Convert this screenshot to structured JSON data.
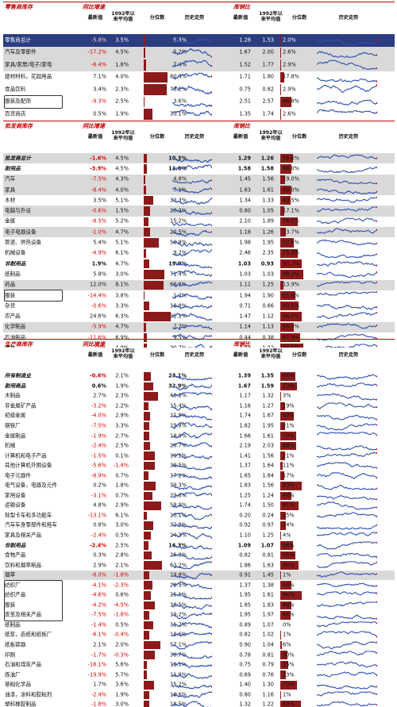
{
  "sections": [
    {
      "title_left": "零售商库存",
      "title_mid": "同比增速",
      "title_right": "库销比",
      "headers": {
        "latest": "最新值",
        "avg": "1992年以来平均值",
        "pct": "分位数",
        "trend": "历史走势",
        "latest2": "最新值",
        "avg2": "1992年以来平均值",
        "pct2": "分位数",
        "trend2": "历史走势"
      },
      "rows": [
        {
          "name": "零售商总计",
          "yoy": "-5.8%",
          "avg": "3.5%",
          "pct": "6.3%",
          "pv": 6.3,
          "ratio": "1.28",
          "ravg": "1.53",
          "rpct": "2.0%",
          "rv": 2.0,
          "style": "pb"
        },
        {
          "name": "汽车及零部件",
          "yoy": "-17.2%",
          "avg": "4.5%",
          "pct": "5.2%",
          "pv": 5.2,
          "ratio": "1.67",
          "ravg": "2.00",
          "rpct": "2.6%",
          "rv": 2.6,
          "style": "g"
        },
        {
          "name": "家具/家居/电子/家电",
          "yoy": "-6.4%",
          "avg": "1.8%",
          "pct": "7.4%",
          "pv": 7.4,
          "ratio": "1.52",
          "ravg": "1.77",
          "rpct": "2.9%",
          "rv": 2.9,
          "style": "g"
        },
        {
          "name": "建材材料，花园用品",
          "yoy": "7.1%",
          "avg": "4.0%",
          "pct": "80.4%",
          "pv": 80.4,
          "ratio": "1.71",
          "ravg": "1.80",
          "rpct": "17.8%",
          "rv": 17.8,
          "style": ""
        },
        {
          "name": "食品饮料",
          "yoy": "3.4%",
          "avg": "2.3%",
          "pct": "78.2%",
          "pv": 78.2,
          "ratio": "0.75",
          "ravg": "0.82",
          "rpct": "2.9%",
          "rv": 2.9,
          "style": ""
        },
        {
          "name": "服装及配饰",
          "yoy": "-9.3%",
          "avg": "2.5%",
          "pct": "3.6%",
          "pv": 3.6,
          "ratio": "2.51",
          "ravg": "2.57",
          "rpct": "46.8%",
          "rv": 46.8,
          "style": "",
          "box": true
        },
        {
          "name": "百货商店",
          "yoy": "0.5%",
          "avg": "1.9%",
          "pct": "30.1%",
          "pv": 30.1,
          "ratio": "1.35",
          "ravg": "1.74",
          "rpct": "2.6%",
          "rv": 2.6,
          "style": ""
        }
      ]
    },
    {
      "title_left": "批发商库存",
      "title_mid": "同比增速",
      "title_right": "库销比",
      "headers": {
        "latest": "最新值",
        "avg": "1992年以来平均值",
        "pct": "分位数",
        "trend": "历史走势",
        "latest2": "最新值",
        "avg2": "1992年以来平均值",
        "pct2": "分位数",
        "trend2": "历史走势"
      },
      "rows": [
        {
          "name": "批发商总计",
          "yoy": "-1.6%",
          "avg": "4.5%",
          "pct": "10.3%",
          "pv": 10.3,
          "ratio": "1.29",
          "ravg": "1.26",
          "rpct": "56.6%",
          "rv": 56.6,
          "style": "g",
          "b": true
        },
        {
          "name": "耐用品",
          "yoy": "-3.9%",
          "avg": "4.5%",
          "pct": "11.0%",
          "pv": 11.0,
          "ratio": "1.58",
          "ravg": "1.58",
          "rpct": "48.0%",
          "rv": 48.0,
          "style": "",
          "b": true
        },
        {
          "name": "汽车",
          "yoy": "-7.5%",
          "avg": "4.3%",
          "pct": "4.8%",
          "pv": 4.8,
          "ratio": "1.45",
          "ravg": "1.56",
          "rpct": "19.0%",
          "rv": 19.0,
          "style": "g"
        },
        {
          "name": "家具",
          "yoy": "-8.4%",
          "avg": "4.0%",
          "pct": "7.1%",
          "pv": 7.1,
          "ratio": "1.63",
          "ravg": "1.61",
          "rpct": "49.0%",
          "rv": 49.0,
          "style": "g"
        },
        {
          "name": "木材",
          "yoy": "3.5%",
          "avg": "5.1%",
          "pct": "33.3%",
          "pv": 33.3,
          "ratio": "1.34",
          "ravg": "1.33",
          "rpct": "43.5%",
          "rv": 43.5,
          "style": ""
        },
        {
          "name": "电脑与外设",
          "yoy": "-0.6%",
          "avg": "1.5%",
          "pct": "20.3%",
          "pv": 20.3,
          "ratio": "0.80",
          "ravg": "1.05",
          "rpct": "17.1%",
          "rv": 17.1,
          "style": "g"
        },
        {
          "name": "金属",
          "yoy": "-8.5%",
          "avg": "5.2%",
          "pct": "15.2%",
          "pv": 15.2,
          "ratio": "2.10",
          "ravg": "1.89",
          "rpct": "76.1%",
          "rv": 76.1,
          "style": ""
        },
        {
          "name": "电子电器设备",
          "yoy": "-1.0%",
          "avg": "4.7%",
          "pct": "20.5%",
          "pv": 20.5,
          "ratio": "1.18",
          "ravg": "1.26",
          "rpct": "23.7%",
          "rv": 23.7,
          "style": "g"
        },
        {
          "name": "管道、供热设备",
          "yoy": "5.4%",
          "avg": "5.1%",
          "pct": "50.8%",
          "pv": 50.8,
          "ratio": "1.98",
          "ravg": "1.95",
          "rpct": "57.6%",
          "rv": 57.6,
          "style": ""
        },
        {
          "name": "机械设备",
          "yoy": "-4.9%",
          "avg": "6.1%",
          "pct": "9.2%",
          "pv": 9.2,
          "ratio": "2.46",
          "ravg": "2.35",
          "rpct": "75.9%",
          "rv": 75.9,
          "style": ""
        },
        {
          "name": "非耐用品",
          "yoy": "1.9%",
          "avg": "4.7%",
          "pct": "19.0%",
          "pv": 19.0,
          "ratio": "1.03",
          "ravg": "0.93",
          "rpct": "93.7%",
          "rv": 93.7,
          "style": "",
          "b": true
        },
        {
          "name": "纸制品",
          "yoy": "5.8%",
          "avg": "3.0%",
          "pct": "71.4%",
          "pv": 71.4,
          "ratio": "1.03",
          "ravg": "1.03",
          "rpct": "98.3%",
          "rv": 98.3,
          "style": ""
        },
        {
          "name": "药品",
          "yoy": "12.0%",
          "avg": "8.1%",
          "pct": "68.2%",
          "pv": 68.2,
          "ratio": "1.11",
          "ravg": "1.25",
          "rpct": "13.9%",
          "rv": 13.9,
          "style": "g"
        },
        {
          "name": "服装",
          "yoy": "-14.4%",
          "avg": "3.8%",
          "pct": "1.2%",
          "pv": 1.2,
          "ratio": "1.94",
          "ravg": "1.90",
          "rpct": "65.8%",
          "rv": 65.8,
          "style": "",
          "box": true
        },
        {
          "name": "杂货",
          "yoy": "-0.6%",
          "avg": "3.3%",
          "pct": "18.8%",
          "pv": 18.8,
          "ratio": "0.71",
          "ravg": "0.66",
          "rpct": "80.5%",
          "rv": 80.5,
          "style": ""
        },
        {
          "name": "农产品",
          "yoy": "24.6%",
          "avg": "6.3%",
          "pct": "92.1%",
          "pv": 92.1,
          "ratio": "1.47",
          "ravg": "1.12",
          "rpct": "94.0%",
          "rv": 94.0,
          "style": ""
        },
        {
          "name": "化学制品",
          "yoy": "-5.9%",
          "avg": "4.7%",
          "pct": "7.7%",
          "pv": 7.7,
          "ratio": "1.14",
          "ravg": "1.13",
          "rpct": "56.9%",
          "rv": 56.9,
          "style": "g"
        },
        {
          "name": "石油制品",
          "yoy": "-11.6%",
          "avg": "6.9%",
          "pct": "9.5%",
          "pv": 9.5,
          "ratio": "0.44",
          "ravg": "0.38",
          "rpct": "87.4%",
          "rv": 87.4,
          "style": ""
        },
        {
          "name": "酒类",
          "yoy": "-2.0%",
          "avg": "4.9%",
          "pct": "10.7%",
          "pv": 10.7,
          "ratio": "1.43",
          "ravg": "1.22",
          "rpct": "99.1%",
          "rv": 99.1,
          "style": ""
        }
      ]
    },
    {
      "title_left": "生产商库存",
      "title_mid": "同比增速",
      "title_right": "库销比",
      "headers": {
        "latest": "最新值",
        "avg": "1992年以来平均值",
        "pct": "分位数",
        "trend": "历史走势",
        "latest2": "最新值",
        "avg2": "1992年以来平均值",
        "pct2": "分位数",
        "trend2": "历史走势"
      },
      "rows": [
        {
          "name": "所有制造业",
          "yoy": "-0.6%",
          "avg": "2.1%",
          "pct": "23.1%",
          "pv": 23.1,
          "ratio": "1.39",
          "ravg": "1.35",
          "rpct": "66%",
          "rv": 66,
          "style": "",
          "b": true
        },
        {
          "name": "耐用商品",
          "yoy": "0.6%",
          "avg": "1.9%",
          "pct": "32.9%",
          "pv": 32.9,
          "ratio": "1.67",
          "ravg": "1.59",
          "rpct": "73%",
          "rv": 73,
          "style": "",
          "b": true
        },
        {
          "name": "木制品",
          "yoy": "2.7%",
          "avg": "2.3%",
          "pct": "48.8%",
          "pv": 48.8,
          "ratio": "1.17",
          "ravg": "1.32",
          "rpct": "3%",
          "rv": 3,
          "style": ""
        },
        {
          "name": "非金属矿产品",
          "yoy": "-3.2%",
          "avg": "2.2%",
          "pct": "15.4%",
          "pv": 15.4,
          "ratio": "1.16",
          "ravg": "1.27",
          "rpct": "19%",
          "rv": 19,
          "style": ""
        },
        {
          "name": "初级金属",
          "yoy": "-4.0%",
          "avg": "2.9%",
          "pct": "21.9%",
          "pv": 21.9,
          "ratio": "1.74",
          "ravg": "1.67",
          "rpct": "60%",
          "rv": 60,
          "style": ""
        },
        {
          "name": "钢铁厂",
          "yoy": "-7.5%",
          "avg": "3.3%",
          "pct": "19.8%",
          "pv": 19.8,
          "ratio": "1.82",
          "ravg": "1.95",
          "rpct": "21%",
          "rv": 21,
          "style": ""
        },
        {
          "name": "金属制品",
          "yoy": "-1.9%",
          "avg": "2.7%",
          "pct": "18.9%",
          "pv": 18.9,
          "ratio": "1.66",
          "ravg": "1.61",
          "rpct": "70%",
          "rv": 70,
          "style": ""
        },
        {
          "name": "机械",
          "yoy": "-2.4%",
          "avg": "2.5%",
          "pct": "20.7%",
          "pv": 20.7,
          "ratio": "2.19",
          "ravg": "2.03",
          "rpct": "68%",
          "rv": 68,
          "style": ""
        },
        {
          "name": "计算机和电子产品",
          "yoy": "-1.5%",
          "avg": "0.1%",
          "pct": "39.1%",
          "pv": 39.1,
          "ratio": "1.41",
          "ravg": "1.56",
          "rpct": "21%",
          "rv": 21,
          "style": ""
        },
        {
          "name": "其他计算机外围设备",
          "yoy": "-5.6%",
          "avg": "-1.4%",
          "pct": "38.5%",
          "pv": 38.5,
          "ratio": "1.37",
          "ravg": "1.64",
          "rpct": "11%",
          "rv": 11,
          "style": ""
        },
        {
          "name": "电子元器件",
          "yoy": "-8.9%",
          "avg": "0.7%",
          "pct": "17.2%",
          "pv": 17.2,
          "ratio": "1.65",
          "ravg": "1.84",
          "rpct": "17%",
          "rv": 17,
          "style": ""
        },
        {
          "name": "电气设备，电器及元件",
          "yoy": "0.2%",
          "avg": "1.8%",
          "pct": "39.3%",
          "pv": 39.3,
          "ratio": "1.83",
          "ravg": "1.56",
          "rpct": "93%",
          "rv": 93,
          "style": ""
        },
        {
          "name": "家用设备",
          "yoy": "-3.1%",
          "avg": "0.7%",
          "pct": "29.6%",
          "pv": 29.6,
          "ratio": "1.25",
          "ravg": "1.24",
          "rpct": "48%",
          "rv": 48,
          "style": ""
        },
        {
          "name": "运输设备",
          "yoy": "4.8%",
          "avg": "2.9%",
          "pct": "58.9%",
          "pv": 58.9,
          "ratio": "1.74",
          "ravg": "1.50",
          "rpct": "81%",
          "rv": 81,
          "style": ""
        },
        {
          "name": "轻型卡车和多功能车",
          "yoy": "-13.1%",
          "avg": "6.1%",
          "pct": "10.1%",
          "pv": 10.1,
          "ratio": "0.20",
          "ravg": "0.24",
          "rpct": "25%",
          "rv": 25,
          "style": ""
        },
        {
          "name": "汽车车身零部件和拖车",
          "yoy": "0.8%",
          "avg": "3.0%",
          "pct": "32.8%",
          "pv": 32.8,
          "ratio": "0.92",
          "ravg": "0.97",
          "rpct": "24%",
          "rv": 24,
          "style": ""
        },
        {
          "name": "家具及相关产品",
          "yoy": "-2.4%",
          "avg": "0.5%",
          "pct": "24.3%",
          "pv": 24.3,
          "ratio": "1.10",
          "ravg": "1.25",
          "rpct": "4%",
          "rv": 4,
          "style": ""
        },
        {
          "name": "非耐用品",
          "yoy": "-2.4%",
          "avg": "2.5%",
          "pct": "16.3%",
          "pv": 16.3,
          "ratio": "1.09",
          "ravg": "1.07",
          "rpct": "56%",
          "rv": 56,
          "style": "",
          "b": true
        },
        {
          "name": "食物产品",
          "yoy": "0.3%",
          "avg": "2.8%",
          "pct": "26.0%",
          "pv": 26.0,
          "ratio": "0.82",
          "ravg": "0.81",
          "rpct": "65%",
          "rv": 65,
          "style": ""
        },
        {
          "name": "饮料和烟草制品",
          "yoy": "2.9%",
          "avg": "2.1%",
          "pct": "63.2%",
          "pv": 63.2,
          "ratio": "1.86",
          "ravg": "1.63",
          "rpct": "80%",
          "rv": 80,
          "style": ""
        },
        {
          "name": "烟草",
          "yoy": "-6.0%",
          "avg": "-1.8%",
          "pct": "19.8%",
          "pv": 19.8,
          "ratio": "0.91",
          "ravg": "1.45",
          "rpct": "1%",
          "rv": 1,
          "style": "g"
        },
        {
          "name": "纺织厂",
          "yoy": "-4.1%",
          "avg": "-2.3%",
          "pct": "29.9%",
          "pv": 29.9,
          "ratio": "1.37",
          "ravg": "1.38",
          "rpct": "48%",
          "rv": 48,
          "style": "",
          "box": true
        },
        {
          "name": "纺织产品",
          "yoy": "-4.6%",
          "avg": "0.6%",
          "pct": "25.1%",
          "pv": 25.1,
          "ratio": "1.95",
          "ravg": "1.61",
          "rpct": "94%",
          "rv": 94,
          "style": "",
          "box": true
        },
        {
          "name": "服装",
          "yoy": "-4.2%",
          "avg": "-4.5%",
          "pct": "38.5%",
          "pv": 38.5,
          "ratio": "1.85",
          "ravg": "1.83",
          "rpct": "48%",
          "rv": 48,
          "style": "",
          "box": true
        },
        {
          "name": "皮革及相关产品",
          "yoy": "-7.5%",
          "avg": "-1.8%",
          "pct": "19.2%",
          "pv": 19.2,
          "ratio": "1.95",
          "ravg": "1.97",
          "rpct": "46%",
          "rv": 46,
          "style": "",
          "box": true
        },
        {
          "name": "纸制品",
          "yoy": "-1.4%",
          "avg": "0.5%",
          "pct": "31.7%",
          "pv": 31.7,
          "ratio": "0.89",
          "ravg": "1.07",
          "rpct": "0%",
          "rv": 0,
          "style": ""
        },
        {
          "name": "纸浆，造纸和纸板厂",
          "yoy": "-6.1%",
          "avg": "-0.4%",
          "pct": "18.6%",
          "pv": 18.6,
          "ratio": "0.82",
          "ravg": "1.02",
          "rpct": "1%",
          "rv": 1,
          "style": ""
        },
        {
          "name": "纸板容器",
          "yoy": "2.1%",
          "avg": "2.0%",
          "pct": "57.1%",
          "pv": 57.1,
          "ratio": "0.90",
          "ravg": "1.04",
          "rpct": "6%",
          "rv": 6,
          "style": ""
        },
        {
          "name": "印刷",
          "yoy": "-1.7%",
          "avg": "-0.3%",
          "pct": "36.7%",
          "pv": 36.7,
          "ratio": "0.78",
          "ravg": "0.81",
          "rpct": "30%",
          "rv": 30,
          "style": ""
        },
        {
          "name": "石油和煤炭产品",
          "yoy": "-18.1%",
          "avg": "5.6%",
          "pct": "12.1%",
          "pv": 12.1,
          "ratio": "0.75",
          "ravg": "0.79",
          "rpct": "35%",
          "rv": 35,
          "style": ""
        },
        {
          "name": "炼油厂",
          "yoy": "-19.9%",
          "avg": "5.7%",
          "pct": "11.8%",
          "pv": 11.8,
          "ratio": "0.69",
          "ravg": "0.76",
          "rpct": "23%",
          "rv": 23,
          "style": ""
        },
        {
          "name": "基础化学品",
          "yoy": "1.7%",
          "avg": "3.6%",
          "pct": "35.2%",
          "pv": 35.2,
          "ratio": "1.40",
          "ravg": "1.30",
          "rpct": "73%",
          "rv": 73,
          "style": ""
        },
        {
          "name": "油漆，涂料和胶粘剂",
          "yoy": "-2.4%",
          "avg": "1.9%",
          "pct": "18.6%",
          "pv": 18.6,
          "ratio": "0.80",
          "ravg": "1.16",
          "rpct": "1%",
          "rv": 1,
          "style": ""
        },
        {
          "name": "塑料橡胶制品",
          "yoy": "-1.8%",
          "avg": "3.0%",
          "pct": "18.5%",
          "pv": 18.5,
          "ratio": "1.32",
          "ravg": "1.22",
          "rpct": "89%",
          "rv": 89,
          "style": ""
        }
      ]
    }
  ]
}
